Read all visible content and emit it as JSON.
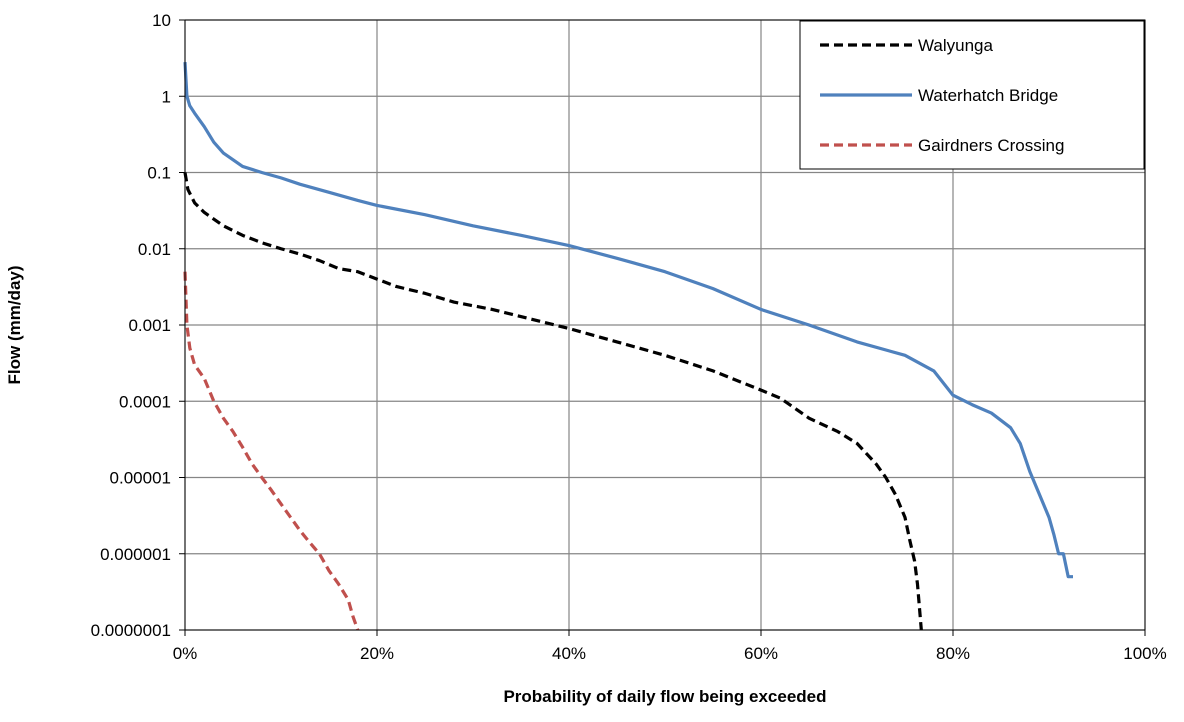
{
  "chart_data": {
    "type": "line",
    "title": "",
    "xlabel": "Probability of daily flow being exceeded",
    "ylabel": "Flow (mm/day)",
    "x_scale": "linear",
    "y_scale": "log",
    "xlim": [
      0,
      100
    ],
    "ylim": [
      1e-07,
      10
    ],
    "x_ticks": [
      0,
      20,
      40,
      60,
      80,
      100
    ],
    "x_tick_labels": [
      "0%",
      "20%",
      "40%",
      "60%",
      "80%",
      "100%"
    ],
    "y_ticks": [
      10,
      1,
      0.1,
      0.01,
      0.001,
      0.0001,
      1e-05,
      1e-06,
      1e-07
    ],
    "y_tick_labels": [
      "10",
      "1",
      "0.1",
      "0.01",
      "0.001",
      "0.0001",
      "0.00001",
      "0.000001",
      "0.0000001"
    ],
    "grid": true,
    "legend_position": "top-right",
    "series": [
      {
        "name": "Walyunga",
        "color": "#000000",
        "dash": "dashed",
        "x": [
          0,
          0.3,
          1,
          2,
          4,
          6,
          8,
          10,
          12,
          14,
          16,
          18,
          20,
          22,
          25,
          28,
          32,
          36,
          40,
          45,
          50,
          55,
          60,
          62,
          65,
          68,
          70,
          72,
          73,
          74,
          75,
          75.5,
          76,
          76.3,
          76.5,
          76.7
        ],
        "y": [
          0.1,
          0.06,
          0.04,
          0.03,
          0.02,
          0.015,
          0.012,
          0.01,
          0.0085,
          0.007,
          0.0055,
          0.005,
          0.004,
          0.0032,
          0.0026,
          0.002,
          0.0016,
          0.0012,
          0.0009,
          0.0006,
          0.0004,
          0.00025,
          0.00014,
          0.00011,
          6e-05,
          4e-05,
          2.8e-05,
          1.5e-05,
          1e-05,
          6e-06,
          3e-06,
          1.5e-06,
          8e-07,
          4e-07,
          2e-07,
          1e-07
        ]
      },
      {
        "name": "Waterhatch Bridge",
        "color": "#4f81bd",
        "dash": "solid",
        "x": [
          0,
          0.2,
          0.5,
          1,
          2,
          3,
          4,
          6,
          8,
          10,
          12,
          15,
          18,
          20,
          25,
          30,
          35,
          40,
          45,
          50,
          55,
          60,
          65,
          70,
          75,
          78,
          80,
          82,
          84,
          86,
          87,
          88,
          89,
          90,
          90.5,
          91,
          91.5,
          92,
          92.5
        ],
        "y": [
          2.8,
          1.0,
          0.75,
          0.6,
          0.4,
          0.25,
          0.18,
          0.12,
          0.1,
          0.085,
          0.07,
          0.055,
          0.043,
          0.037,
          0.028,
          0.02,
          0.015,
          0.011,
          0.0075,
          0.005,
          0.003,
          0.0016,
          0.001,
          0.0006,
          0.0004,
          0.00025,
          0.00012,
          9e-05,
          7e-05,
          4.5e-05,
          2.8e-05,
          1.2e-05,
          6e-06,
          3e-06,
          1.8e-06,
          1e-06,
          1e-06,
          5e-07,
          5e-07
        ]
      },
      {
        "name": "Gairdners Crossing",
        "color": "#c0504d",
        "dash": "dashed",
        "x": [
          0,
          0.2,
          0.5,
          1,
          2,
          3,
          4,
          5,
          6,
          7,
          8,
          9,
          10,
          11,
          12,
          13,
          14,
          15,
          16,
          17,
          17.5,
          18
        ],
        "y": [
          0.005,
          0.001,
          0.0005,
          0.0003,
          0.0002,
          0.0001,
          6e-05,
          4e-05,
          2.5e-05,
          1.5e-05,
          1e-05,
          6.8e-06,
          4.5e-06,
          3e-06,
          2e-06,
          1.4e-06,
          1e-06,
          6e-07,
          4e-07,
          2.5e-07,
          1.5e-07,
          1e-07
        ]
      }
    ]
  }
}
